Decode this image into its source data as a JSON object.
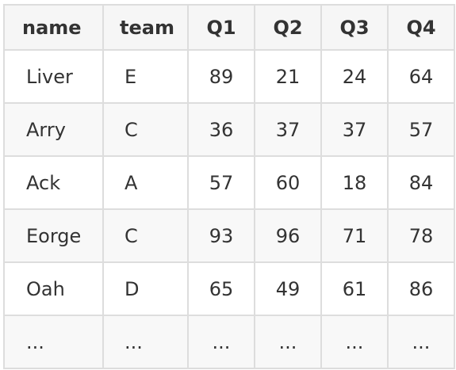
{
  "table": {
    "headers": [
      "name",
      "team",
      "Q1",
      "Q2",
      "Q3",
      "Q4"
    ],
    "rows": [
      [
        "Liver",
        "E",
        "89",
        "21",
        "24",
        "64"
      ],
      [
        "Arry",
        "C",
        "36",
        "37",
        "37",
        "57"
      ],
      [
        "Ack",
        "A",
        "57",
        "60",
        "18",
        "84"
      ],
      [
        "Eorge",
        "C",
        "93",
        "96",
        "71",
        "78"
      ],
      [
        "Oah",
        "D",
        "65",
        "49",
        "61",
        "86"
      ],
      [
        "...",
        "...",
        "...",
        "...",
        "...",
        "..."
      ]
    ]
  }
}
